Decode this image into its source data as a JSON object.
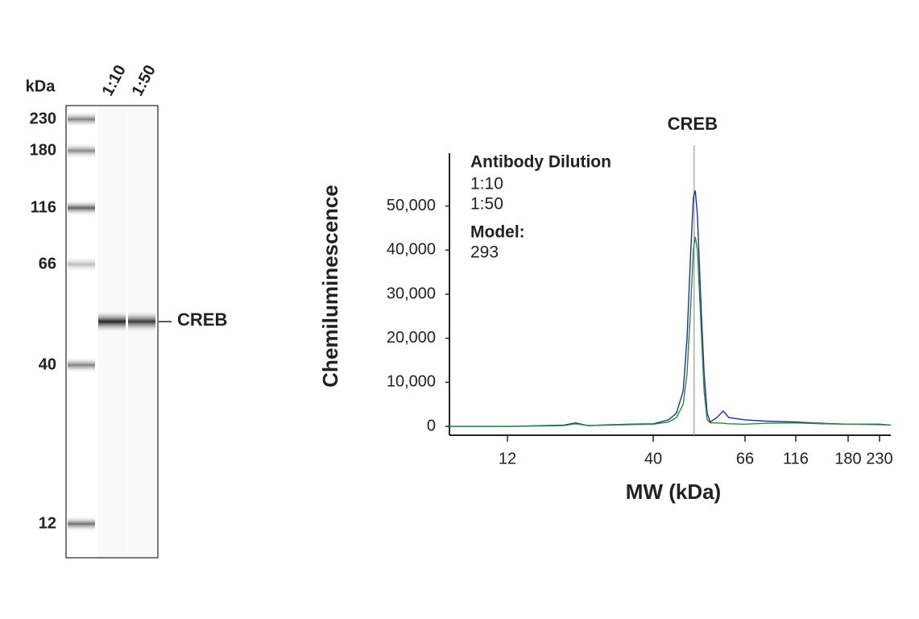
{
  "blot": {
    "unit_label": "kDa",
    "markers": [
      "230",
      "180",
      "116",
      "66",
      "40",
      "12"
    ],
    "lanes": [
      "1:10",
      "1:50"
    ],
    "band_label": "CREB"
  },
  "chart_data": {
    "type": "line",
    "title": "CREB",
    "x_label": "MW (kDa)",
    "y_label": "Chemiluminescence",
    "x": [
      7.4,
      12,
      19.1,
      21.1,
      23.3,
      32.6,
      40,
      43.5,
      45.4,
      47.1,
      48.1,
      49,
      49.8,
      50.3,
      50.9,
      51.8,
      52.8,
      53.7,
      54.6,
      56.6,
      58.6,
      60.4,
      66,
      82.6,
      116,
      144,
      180,
      230,
      251
    ],
    "series": [
      {
        "name": "1:10",
        "color": "#1f2fa0",
        "values": [
          0,
          0,
          300,
          800,
          200,
          500,
          600,
          1500,
          3000,
          8000,
          20000,
          38000,
          52000,
          53500,
          48000,
          30000,
          12000,
          3000,
          1000,
          2000,
          3500,
          2000,
          1500,
          1200,
          1000,
          700,
          500,
          500,
          300
        ]
      },
      {
        "name": "1:50",
        "color": "#2a8a3a",
        "values": [
          0,
          0,
          200,
          600,
          200,
          400,
          500,
          1000,
          2000,
          5000,
          12000,
          26000,
          40000,
          43000,
          40000,
          25000,
          8000,
          1500,
          800,
          800,
          700,
          600,
          500,
          700,
          800,
          600,
          500,
          400,
          300
        ]
      }
    ],
    "legend_title": "Antibody Dilution",
    "note_title": "Model:",
    "note_text": "293",
    "annotation": {
      "label": "CREB",
      "x": 50
    },
    "xlim": [
      7.4,
      251
    ],
    "xticks": [
      12,
      40,
      66,
      116,
      180,
      230
    ],
    "ylim": [
      -2000,
      62000
    ],
    "yticks": [
      0,
      {
        "value": 10000,
        "label": "10,000"
      },
      {
        "value": 20000,
        "label": "20,000"
      },
      {
        "value": 30000,
        "label": "30,000"
      },
      {
        "value": 40000,
        "label": "40,000"
      },
      {
        "value": 50000,
        "label": "50,000"
      }
    ],
    "grid": false
  }
}
